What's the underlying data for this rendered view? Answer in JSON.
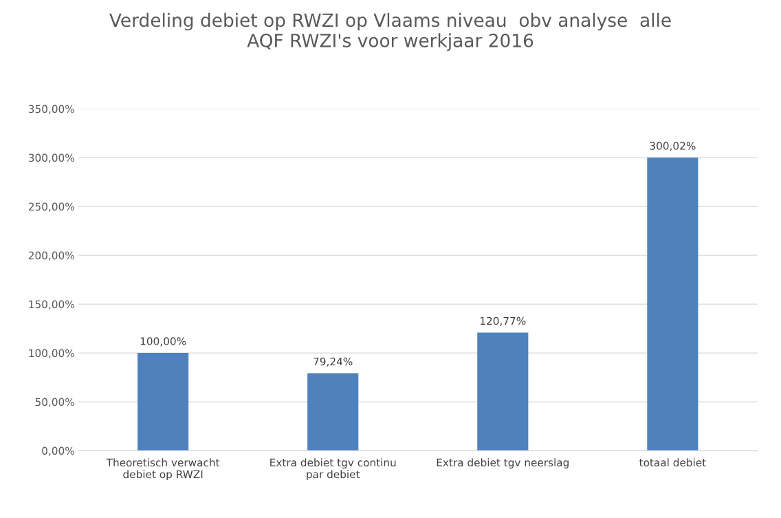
{
  "chart_data": {
    "type": "bar",
    "title": "Verdeling debiet op RWZI op Vlaams niveau  obv analyse  alle\nAQF RWZI's voor werkjaar 2016",
    "categories": [
      "Theoretisch verwacht\ndebiet op RWZI",
      "Extra debiet tgv continu\npar debiet",
      "Extra debiet tgv neerslag",
      "totaal debiet"
    ],
    "values": [
      100.0,
      79.24,
      120.77,
      300.02
    ],
    "value_labels": [
      "100,00%",
      "79,24%",
      "120,77%",
      "300,02%"
    ],
    "color": "#4f81bd",
    "ylim": [
      0,
      350
    ],
    "yticks": [
      {
        "value": 0,
        "label": "0,00%"
      },
      {
        "value": 50,
        "label": "50,00%"
      },
      {
        "value": 100,
        "label": "100,00%"
      },
      {
        "value": 150,
        "label": "150,00%"
      },
      {
        "value": 200,
        "label": "200,00%"
      },
      {
        "value": 250,
        "label": "250,00%"
      },
      {
        "value": 300,
        "label": "300,00%"
      },
      {
        "value": 350,
        "label": "350,00%"
      }
    ],
    "grid": "y"
  }
}
